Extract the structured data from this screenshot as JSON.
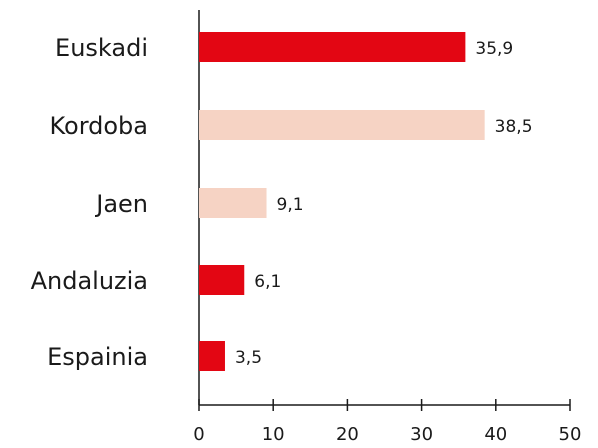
{
  "chart_data": {
    "type": "bar",
    "orientation": "horizontal",
    "categories": [
      "Euskadi",
      "Kordoba",
      "Jaen",
      "Andaluzia",
      "Espainia"
    ],
    "values": [
      35.9,
      38.5,
      9.1,
      6.1,
      3.5
    ],
    "value_labels": [
      "35,9",
      "38,5",
      "9,1",
      "6,1",
      "3,5"
    ],
    "colors": [
      "#e30613",
      "#f6d3c4",
      "#f6d3c4",
      "#e30613",
      "#e30613"
    ],
    "xlim": [
      0,
      50
    ],
    "xticks": [
      0,
      10,
      20,
      30,
      40,
      50
    ]
  }
}
